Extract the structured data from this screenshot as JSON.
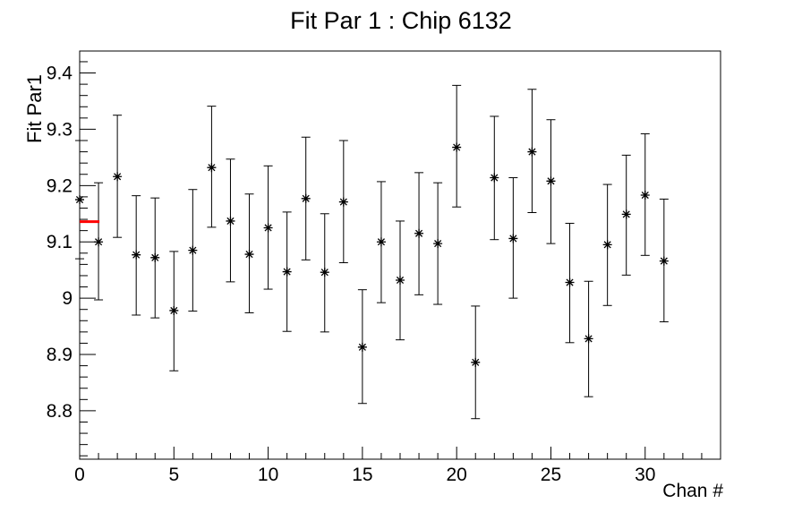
{
  "title": "Fit Par 1 : Chip 6132",
  "colors": {
    "background": "#ffffff",
    "axis": "#000000",
    "marker": "#000000",
    "fit_line": "#ff0000"
  },
  "chart_data": {
    "type": "scatter",
    "title": "Fit Par 1 : Chip 6132",
    "xlabel": "Chan #",
    "ylabel": "Fit Par1",
    "xlim": [
      0,
      34
    ],
    "ylim": [
      8.714,
      9.439
    ],
    "grid": false,
    "legend": "none",
    "marker_style": "asterisk",
    "x_major_ticks": [
      0,
      5,
      10,
      15,
      20,
      25,
      30
    ],
    "x_major_tick_labels": [
      "0",
      "5",
      "10",
      "15",
      "20",
      "25",
      "30"
    ],
    "x_minor_step": 1,
    "y_major_ticks": [
      9.4,
      9.3,
      9.2,
      9.1,
      9.0,
      8.9,
      8.8
    ],
    "y_major_tick_labels": [
      "9.4",
      "9.3",
      "9.2",
      "9.1",
      "9",
      "8.9",
      "8.8"
    ],
    "y_minor_step": 0.02,
    "x": [
      0,
      1,
      2,
      3,
      4,
      5,
      6,
      7,
      8,
      9,
      10,
      11,
      12,
      13,
      14,
      15,
      16,
      17,
      18,
      19,
      20,
      21,
      22,
      23,
      24,
      25,
      26,
      27,
      28,
      29,
      30,
      31
    ],
    "y": [
      9.175,
      9.1,
      9.216,
      9.077,
      9.072,
      8.978,
      9.085,
      9.232,
      9.137,
      9.078,
      9.125,
      9.047,
      9.177,
      9.046,
      9.171,
      8.913,
      9.1,
      9.032,
      9.115,
      9.097,
      9.268,
      8.886,
      9.214,
      9.106,
      9.26,
      9.208,
      9.028,
      8.928,
      9.095,
      9.149,
      9.183,
      9.066
    ],
    "y_low": [
      9.07,
      8.997,
      9.108,
      8.97,
      8.965,
      8.871,
      8.977,
      9.126,
      9.029,
      8.974,
      9.016,
      8.941,
      9.068,
      8.94,
      9.063,
      8.813,
      8.992,
      8.926,
      9.006,
      8.989,
      9.162,
      8.786,
      9.104,
      9.0,
      9.152,
      9.097,
      8.921,
      8.825,
      8.987,
      9.041,
      9.076,
      8.958
    ],
    "y_high": [
      9.28,
      9.205,
      9.325,
      9.182,
      9.178,
      9.083,
      9.193,
      9.341,
      9.247,
      9.185,
      9.235,
      9.153,
      9.286,
      9.15,
      9.28,
      9.015,
      9.207,
      9.137,
      9.223,
      9.205,
      9.378,
      8.986,
      9.323,
      9.214,
      9.371,
      9.317,
      9.133,
      9.03,
      9.202,
      9.254,
      9.292,
      9.176
    ],
    "fit_line": {
      "x0": 0,
      "x1": 1.05,
      "y": 9.136,
      "color": "#ff0000"
    }
  }
}
